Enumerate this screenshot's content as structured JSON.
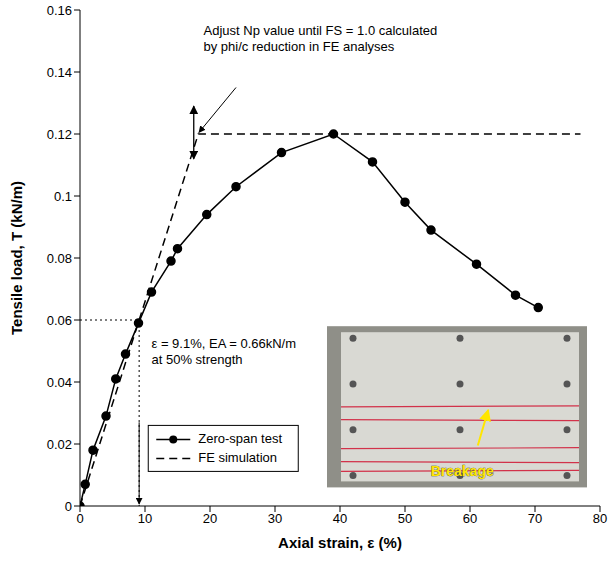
{
  "chart_data": {
    "type": "line",
    "x_label": "Axial strain, ε (%)",
    "y_label": "Tensile load, T (kN/m)",
    "xlim": [
      0,
      80
    ],
    "xticks": [
      0,
      10,
      20,
      30,
      40,
      50,
      60,
      70,
      80
    ],
    "ylim": [
      0,
      0.16
    ],
    "yticks": [
      0,
      0.02,
      0.04,
      0.06,
      0.08,
      0.1,
      0.12,
      0.14,
      0.16
    ],
    "grid": false,
    "legend": "lower left",
    "series": [
      {
        "name": "Zero-span test",
        "color": "#000000",
        "marker": "circle",
        "line_style": "solid",
        "x": [
          0,
          0.8,
          2,
          4,
          5.5,
          7,
          9,
          11,
          14,
          15,
          19.5,
          24,
          31,
          39,
          45,
          50,
          54,
          61,
          67,
          70.5
        ],
        "values": [
          0,
          0.007,
          0.018,
          0.029,
          0.041,
          0.049,
          0.059,
          0.069,
          0.079,
          0.083,
          0.094,
          0.103,
          0.114,
          0.12,
          0.111,
          0.098,
          0.089,
          0.078,
          0.068,
          0.064
        ]
      },
      {
        "name": "FE simulation",
        "color": "#000000",
        "marker": "none",
        "line_style": "dashed",
        "x": [
          0,
          18.2,
          77
        ],
        "values": [
          0,
          0.12,
          0.12
        ]
      }
    ],
    "annotations": [
      {
        "text": [
          "Adjust Np value until FS = 1.0 calculated",
          "by phi/c reduction in FE analyses"
        ]
      },
      {
        "text": [
          "ε = 9.1%, EA = 0.66kN/m",
          "at 50% strength"
        ]
      }
    ],
    "reference_point": {
      "x": 9.1,
      "y": 0.06
    },
    "inset": {
      "label": "Breakage"
    }
  }
}
